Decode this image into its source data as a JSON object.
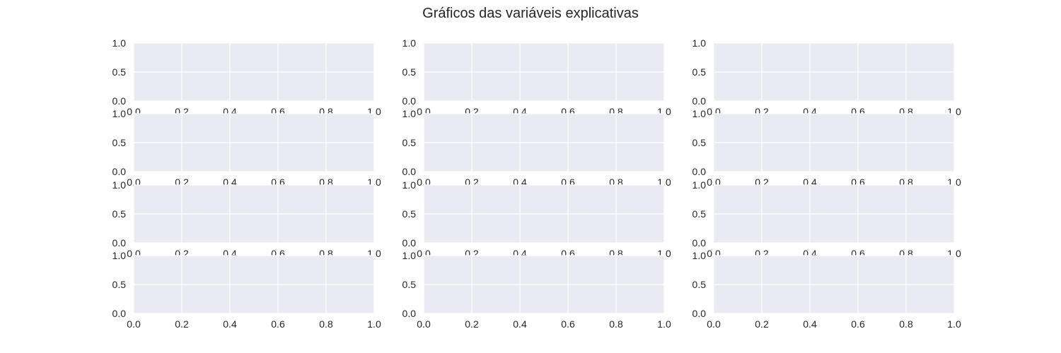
{
  "figure": {
    "title": "Gráficos das variáveis explicativas",
    "rows": 4,
    "cols": 3,
    "colors": {
      "axes_background": "#EAEAF2",
      "grid": "#FFFFFF",
      "text": "#262626"
    }
  },
  "chart_data": [
    {
      "type": "scatter",
      "series": [],
      "xlim": [
        0,
        1
      ],
      "ylim": [
        0,
        1
      ],
      "xticks": [
        "0.0",
        "0.2",
        "0.4",
        "0.6",
        "0.8",
        "1.0"
      ],
      "yticks": [
        "0.0",
        "0.5",
        "1.0"
      ],
      "grid": true
    },
    {
      "type": "scatter",
      "series": [],
      "xlim": [
        0,
        1
      ],
      "ylim": [
        0,
        1
      ],
      "xticks": [
        "0.0",
        "0.2",
        "0.4",
        "0.6",
        "0.8",
        "1.0"
      ],
      "yticks": [
        "0.0",
        "0.5",
        "1.0"
      ],
      "grid": true
    },
    {
      "type": "scatter",
      "series": [],
      "xlim": [
        0,
        1
      ],
      "ylim": [
        0,
        1
      ],
      "xticks": [
        "0.0",
        "0.2",
        "0.4",
        "0.6",
        "0.8",
        "1.0"
      ],
      "yticks": [
        "0.0",
        "0.5",
        "1.0"
      ],
      "grid": true
    },
    {
      "type": "scatter",
      "series": [],
      "xlim": [
        0,
        1
      ],
      "ylim": [
        0,
        1
      ],
      "xticks": [
        "0.0",
        "0.2",
        "0.4",
        "0.6",
        "0.8",
        "1.0"
      ],
      "yticks": [
        "0.0",
        "0.5",
        "1.0"
      ],
      "grid": true
    },
    {
      "type": "scatter",
      "series": [],
      "xlim": [
        0,
        1
      ],
      "ylim": [
        0,
        1
      ],
      "xticks": [
        "0.0",
        "0.2",
        "0.4",
        "0.6",
        "0.8",
        "1.0"
      ],
      "yticks": [
        "0.0",
        "0.5",
        "1.0"
      ],
      "grid": true
    },
    {
      "type": "scatter",
      "series": [],
      "xlim": [
        0,
        1
      ],
      "ylim": [
        0,
        1
      ],
      "xticks": [
        "0.0",
        "0.2",
        "0.4",
        "0.6",
        "0.8",
        "1.0"
      ],
      "yticks": [
        "0.0",
        "0.5",
        "1.0"
      ],
      "grid": true
    },
    {
      "type": "scatter",
      "series": [],
      "xlim": [
        0,
        1
      ],
      "ylim": [
        0,
        1
      ],
      "xticks": [
        "0.0",
        "0.2",
        "0.4",
        "0.6",
        "0.8",
        "1.0"
      ],
      "yticks": [
        "0.0",
        "0.5",
        "1.0"
      ],
      "grid": true
    },
    {
      "type": "scatter",
      "series": [],
      "xlim": [
        0,
        1
      ],
      "ylim": [
        0,
        1
      ],
      "xticks": [
        "0.0",
        "0.2",
        "0.4",
        "0.6",
        "0.8",
        "1.0"
      ],
      "yticks": [
        "0.0",
        "0.5",
        "1.0"
      ],
      "grid": true
    },
    {
      "type": "scatter",
      "series": [],
      "xlim": [
        0,
        1
      ],
      "ylim": [
        0,
        1
      ],
      "xticks": [
        "0.0",
        "0.2",
        "0.4",
        "0.6",
        "0.8",
        "1.0"
      ],
      "yticks": [
        "0.0",
        "0.5",
        "1.0"
      ],
      "grid": true
    },
    {
      "type": "scatter",
      "series": [],
      "xlim": [
        0,
        1
      ],
      "ylim": [
        0,
        1
      ],
      "xticks": [
        "0.0",
        "0.2",
        "0.4",
        "0.6",
        "0.8",
        "1.0"
      ],
      "yticks": [
        "0.0",
        "0.5",
        "1.0"
      ],
      "grid": true
    },
    {
      "type": "scatter",
      "series": [],
      "xlim": [
        0,
        1
      ],
      "ylim": [
        0,
        1
      ],
      "xticks": [
        "0.0",
        "0.2",
        "0.4",
        "0.6",
        "0.8",
        "1.0"
      ],
      "yticks": [
        "0.0",
        "0.5",
        "1.0"
      ],
      "grid": true
    },
    {
      "type": "scatter",
      "series": [],
      "xlim": [
        0,
        1
      ],
      "ylim": [
        0,
        1
      ],
      "xticks": [
        "0.0",
        "0.2",
        "0.4",
        "0.6",
        "0.8",
        "1.0"
      ],
      "yticks": [
        "0.0",
        "0.5",
        "1.0"
      ],
      "grid": true
    }
  ]
}
